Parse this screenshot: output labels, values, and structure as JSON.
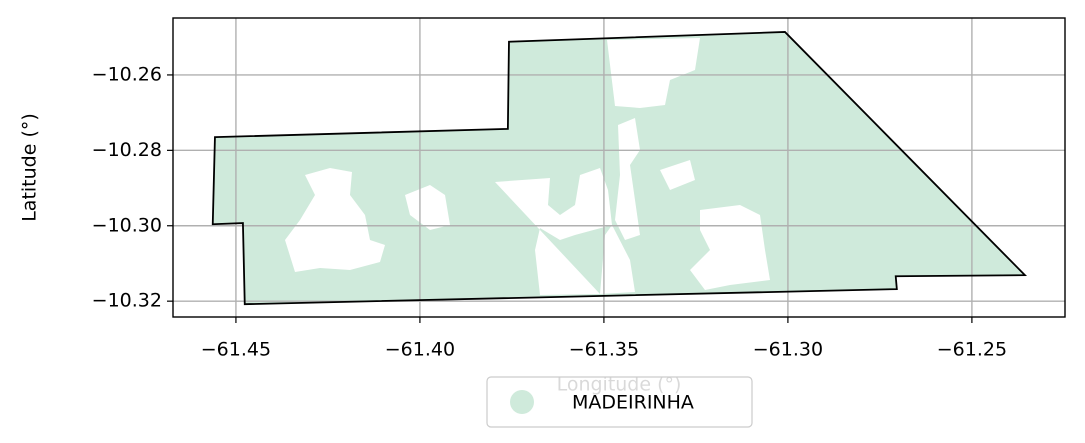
{
  "chart_data": {
    "type": "map",
    "xlabel": "Longitude (°)",
    "ylabel": "Latitude (°)",
    "xlim": [
      -61.4671,
      -61.2247
    ],
    "ylim": [
      -10.3242,
      -10.2449
    ],
    "xticks": [
      {
        "value": -61.45,
        "label": "−61.45"
      },
      {
        "value": -61.4,
        "label": "−61.40"
      },
      {
        "value": -61.35,
        "label": "−61.35"
      },
      {
        "value": -61.3,
        "label": "−61.30"
      },
      {
        "value": -61.25,
        "label": "−61.25"
      }
    ],
    "yticks": [
      {
        "value": -10.26,
        "label": "−10.26"
      },
      {
        "value": -10.28,
        "label": "−10.28"
      },
      {
        "value": -10.3,
        "label": "−10.30"
      },
      {
        "value": -10.32,
        "label": "−10.32"
      }
    ],
    "grid": true,
    "legend": "below",
    "series": [
      {
        "name": "MADEIRINHA",
        "color": "#cfeadb",
        "lon": [
          -61.4557,
          -61.3761,
          -61.3758,
          -61.3008,
          -61.2356,
          -61.2707,
          -61.2704,
          -61.4476,
          -61.4481,
          -61.4563
        ],
        "lat": [
          -10.2765,
          -10.2743,
          -10.2512,
          -10.2486,
          -10.3131,
          -10.3134,
          -10.3168,
          -10.3208,
          -10.2993,
          -10.2996
        ]
      }
    ]
  }
}
